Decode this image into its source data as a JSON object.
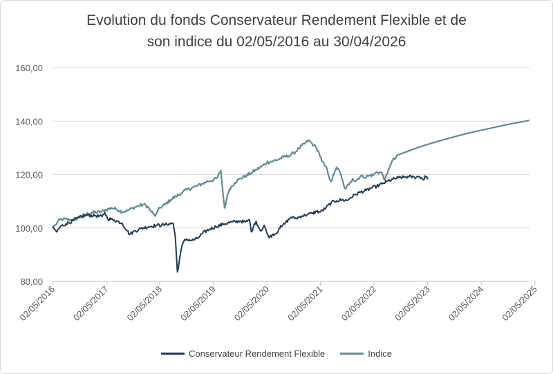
{
  "chart_data": {
    "type": "line",
    "title_line1": "Evolution du fonds Conservateur Rendement Flexible et de",
    "title_line2": "son indice du 02/05/2016 au 30/04/2026",
    "ylim": [
      80,
      160
    ],
    "yticks": [
      "80,00",
      "100,00",
      "120,00",
      "140,00",
      "160,00"
    ],
    "xticks": [
      "02/05/2016",
      "02/05/2017",
      "02/05/2018",
      "02/05/2019",
      "02/05/2020",
      "02/05/2021",
      "02/05/2022",
      "02/05/2023",
      "02/05/2024",
      "02/05/2025"
    ],
    "grid": true,
    "legend_position": "bottom",
    "series": [
      {
        "name": "Conservateur Rendement Flexible",
        "color": "#1f3a5a",
        "points": [
          [
            0,
            100
          ],
          [
            0.07,
            99.5
          ],
          [
            0.15,
            98.5
          ],
          [
            0.3,
            100.6
          ],
          [
            0.5,
            101.5
          ],
          [
            0.8,
            102.8
          ],
          [
            1.0,
            104.0
          ],
          [
            1.3,
            104.8
          ],
          [
            1.6,
            104.6
          ],
          [
            1.85,
            104.2
          ],
          [
            1.95,
            105.8
          ],
          [
            2.05,
            103.5
          ],
          [
            2.3,
            103.0
          ],
          [
            2.6,
            101.8
          ],
          [
            2.78,
            99.0
          ],
          [
            2.88,
            97.6
          ],
          [
            3.0,
            98.5
          ],
          [
            3.3,
            99.8
          ],
          [
            3.6,
            100.5
          ],
          [
            3.9,
            101.0
          ],
          [
            4.2,
            101.2
          ],
          [
            4.35,
            101.6
          ],
          [
            4.5,
            101.8
          ],
          [
            4.58,
            97.0
          ],
          [
            4.62,
            90.0
          ],
          [
            4.66,
            83.5
          ],
          [
            4.72,
            87.0
          ],
          [
            4.8,
            92.0
          ],
          [
            4.9,
            95.0
          ],
          [
            5.0,
            95.8
          ],
          [
            5.2,
            95.3
          ],
          [
            5.4,
            96.0
          ],
          [
            5.6,
            98.0
          ],
          [
            5.85,
            99.5
          ],
          [
            6.1,
            100.5
          ],
          [
            6.4,
            101.5
          ],
          [
            6.7,
            102.2
          ],
          [
            7.0,
            102.6
          ],
          [
            7.2,
            102.2
          ],
          [
            7.35,
            103.0
          ],
          [
            7.42,
            98.5
          ],
          [
            7.5,
            100.5
          ],
          [
            7.6,
            102.5
          ],
          [
            7.7,
            100.0
          ],
          [
            7.8,
            99.0
          ],
          [
            7.9,
            101.0
          ],
          [
            8.0,
            98.0
          ],
          [
            8.1,
            96.5
          ],
          [
            8.2,
            97.5
          ],
          [
            8.35,
            98.0
          ],
          [
            8.45,
            99.8
          ],
          [
            8.55,
            100.5
          ],
          [
            8.7,
            102.0
          ],
          [
            8.9,
            104.0
          ],
          [
            9.1,
            103.6
          ],
          [
            9.3,
            104.5
          ],
          [
            9.5,
            105.0
          ],
          [
            9.7,
            105.5
          ],
          [
            9.85,
            106.2
          ],
          [
            10.0,
            106.0
          ],
          [
            10.2,
            107.5
          ],
          [
            10.4,
            109.5
          ],
          [
            10.6,
            110.2
          ],
          [
            10.8,
            110.5
          ],
          [
            11.0,
            110.3
          ],
          [
            11.1,
            111.2
          ],
          [
            11.3,
            112.5
          ],
          [
            11.5,
            113.5
          ],
          [
            11.7,
            114.0
          ],
          [
            11.9,
            115.0
          ],
          [
            12.1,
            115.6
          ],
          [
            12.3,
            116.5
          ],
          [
            12.5,
            117.5
          ],
          [
            12.7,
            118.2
          ],
          [
            12.9,
            118.8
          ],
          [
            13.1,
            119.0
          ],
          [
            13.3,
            119.2
          ],
          [
            13.5,
            119.0
          ],
          [
            13.7,
            119.3
          ],
          [
            13.85,
            118.0
          ],
          [
            13.9,
            119.5
          ],
          [
            14.0,
            118.2
          ]
        ]
      },
      {
        "name": "Indice",
        "color": "#5f8a96",
        "points": [
          [
            0,
            100
          ],
          [
            0.07,
            101.0
          ],
          [
            0.15,
            101.5
          ],
          [
            0.22,
            102.8
          ],
          [
            0.4,
            103.3
          ],
          [
            0.7,
            103.0
          ],
          [
            1.0,
            103.8
          ],
          [
            1.2,
            105.0
          ],
          [
            1.5,
            105.8
          ],
          [
            1.8,
            106.0
          ],
          [
            2.0,
            106.8
          ],
          [
            2.2,
            107.5
          ],
          [
            2.4,
            107.0
          ],
          [
            2.6,
            106.0
          ],
          [
            2.8,
            106.5
          ],
          [
            3.0,
            107.5
          ],
          [
            3.2,
            108.2
          ],
          [
            3.4,
            108.8
          ],
          [
            3.55,
            108.0
          ],
          [
            3.65,
            106.5
          ],
          [
            3.75,
            105.5
          ],
          [
            3.82,
            104.5
          ],
          [
            3.9,
            106.0
          ],
          [
            4.0,
            107.5
          ],
          [
            4.2,
            108.8
          ],
          [
            4.4,
            110.5
          ],
          [
            4.6,
            111.8
          ],
          [
            4.8,
            113.0
          ],
          [
            5.0,
            114.3
          ],
          [
            5.2,
            115.0
          ],
          [
            5.4,
            115.8
          ],
          [
            5.6,
            116.6
          ],
          [
            5.8,
            117.5
          ],
          [
            6.0,
            118.0
          ],
          [
            6.15,
            118.8
          ],
          [
            6.28,
            121.5
          ],
          [
            6.35,
            114.0
          ],
          [
            6.42,
            107.5
          ],
          [
            6.5,
            111.0
          ],
          [
            6.6,
            114.5
          ],
          [
            6.8,
            117.0
          ],
          [
            7.0,
            118.5
          ],
          [
            7.2,
            119.5
          ],
          [
            7.4,
            120.5
          ],
          [
            7.6,
            121.8
          ],
          [
            7.8,
            123.0
          ],
          [
            8.0,
            124.5
          ],
          [
            8.2,
            125.0
          ],
          [
            8.4,
            125.5
          ],
          [
            8.6,
            126.5
          ],
          [
            8.8,
            127.0
          ],
          [
            9.0,
            128.0
          ],
          [
            9.2,
            129.8
          ],
          [
            9.4,
            131.5
          ],
          [
            9.55,
            132.8
          ],
          [
            9.75,
            131.0
          ],
          [
            9.85,
            130.0
          ],
          [
            9.95,
            128.0
          ],
          [
            10.05,
            125.0
          ],
          [
            10.15,
            123.5
          ],
          [
            10.25,
            122.0
          ],
          [
            10.32,
            119.0
          ],
          [
            10.4,
            117.5
          ],
          [
            10.5,
            120.0
          ],
          [
            10.6,
            122.8
          ],
          [
            10.72,
            121.0
          ],
          [
            10.8,
            118.5
          ],
          [
            10.88,
            115.5
          ],
          [
            10.95,
            114.8
          ],
          [
            11.1,
            117.0
          ],
          [
            11.2,
            118.5
          ],
          [
            11.3,
            117.5
          ],
          [
            11.4,
            118.5
          ],
          [
            11.5,
            119.5
          ],
          [
            11.6,
            119.0
          ],
          [
            11.8,
            119.5
          ],
          [
            12.0,
            120.0
          ],
          [
            12.1,
            121.0
          ],
          [
            12.3,
            120.5
          ],
          [
            12.4,
            118.0
          ],
          [
            12.5,
            120.5
          ],
          [
            12.6,
            123.5
          ],
          [
            12.7,
            125.5
          ],
          [
            12.8,
            126.0
          ],
          [
            12.85,
            127.2
          ],
          [
            13.2,
            128.5
          ],
          [
            13.6,
            130.0
          ],
          [
            14.0,
            131.3
          ],
          [
            14.4,
            132.5
          ],
          [
            14.8,
            133.6
          ],
          [
            15.2,
            134.7
          ],
          [
            15.6,
            135.7
          ],
          [
            16.0,
            136.6
          ],
          [
            16.5,
            137.7
          ],
          [
            17.0,
            138.8
          ],
          [
            17.5,
            139.7
          ],
          [
            17.8,
            140.3
          ]
        ]
      }
    ]
  }
}
